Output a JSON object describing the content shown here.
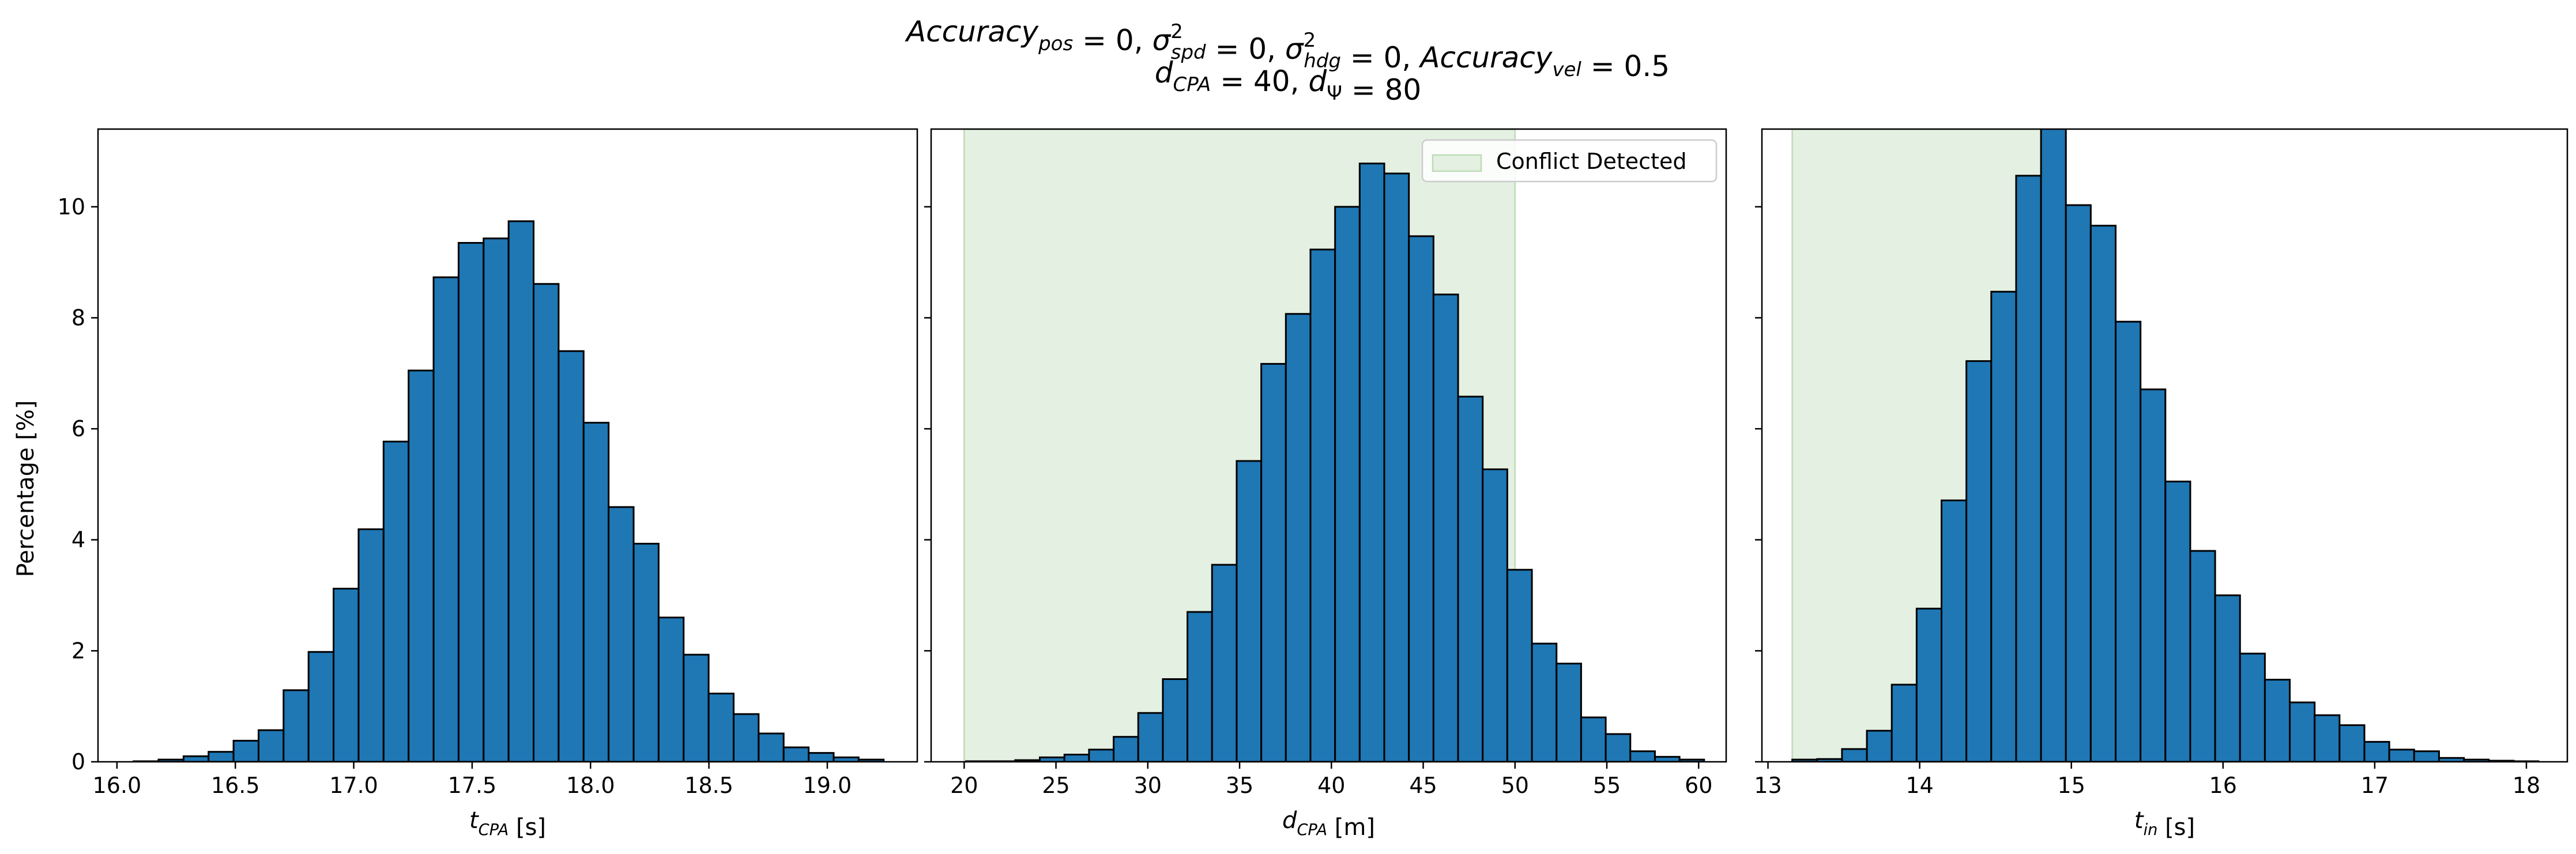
{
  "title": {
    "line1": [
      {
        "t": "Accuracy",
        "i": true
      },
      {
        "t": "pos",
        "i": true,
        "sub": true
      },
      {
        "t": " = 0, "
      },
      {
        "t": "σ",
        "i": true
      },
      {
        "t": "2",
        "sup": true,
        "stack": true
      },
      {
        "t": "spd",
        "i": true,
        "sub": true
      },
      {
        "t": " = 0, "
      },
      {
        "t": "σ",
        "i": true
      },
      {
        "t": "2",
        "sup": true,
        "stack": true
      },
      {
        "t": "hdg",
        "i": true,
        "sub": true
      },
      {
        "t": " = 0, "
      },
      {
        "t": "Accuracy",
        "i": true
      },
      {
        "t": "vel",
        "i": true,
        "sub": true
      },
      {
        "t": " = 0.5"
      }
    ],
    "line2": [
      {
        "t": "d",
        "i": true
      },
      {
        "t": "CPA",
        "i": true,
        "sub": true
      },
      {
        "t": " = 40, "
      },
      {
        "t": "d",
        "i": true
      },
      {
        "t": "Ψ",
        "sub": true
      },
      {
        "t": " = 80"
      }
    ]
  },
  "ylabel": "Percentage [%]",
  "legend": {
    "label": "Conflict Detected",
    "placement": "upper right",
    "panel": 1
  },
  "colors": {
    "bar": "#1f77b4",
    "edge": "#000000",
    "conflict": "#e4f0e2",
    "conflict_edge": "#bcdcb6"
  },
  "chart_data": [
    {
      "type": "bar",
      "subtype": "histogram",
      "xlabel": [
        {
          "t": "t",
          "i": true
        },
        {
          "t": "CPA",
          "i": true,
          "sub": true
        },
        {
          "t": " [s]"
        }
      ],
      "xlim": [
        15.92,
        19.38
      ],
      "ylim": [
        0,
        11.4
      ],
      "xticks": [
        {
          "v": 16.0,
          "label": "16.0"
        },
        {
          "v": 16.5,
          "label": "16.5"
        },
        {
          "v": 17.0,
          "label": "17.0"
        },
        {
          "v": 17.5,
          "label": "17.5"
        },
        {
          "v": 18.0,
          "label": "18.0"
        },
        {
          "v": 18.5,
          "label": "18.5"
        },
        {
          "v": 19.0,
          "label": "19.0"
        }
      ],
      "yticks": [
        {
          "v": 0,
          "label": "0"
        },
        {
          "v": 2,
          "label": "2"
        },
        {
          "v": 4,
          "label": "4"
        },
        {
          "v": 6,
          "label": "6"
        },
        {
          "v": 8,
          "label": "8"
        },
        {
          "v": 10,
          "label": "10"
        }
      ],
      "bin_start": 16.07,
      "bin_width": 0.1056,
      "values": [
        0.01,
        0.04,
        0.1,
        0.18,
        0.38,
        0.57,
        1.29,
        1.98,
        3.12,
        4.19,
        5.77,
        7.05,
        8.73,
        9.35,
        9.43,
        9.74,
        8.61,
        7.4,
        6.11,
        4.59,
        3.93,
        2.6,
        1.93,
        1.23,
        0.86,
        0.51,
        0.26,
        0.16,
        0.08,
        0.04
      ],
      "conflict_span": null
    },
    {
      "type": "bar",
      "subtype": "histogram",
      "xlabel": [
        {
          "t": "d",
          "i": true
        },
        {
          "t": "CPA",
          "i": true,
          "sub": true
        },
        {
          "t": " [m]"
        }
      ],
      "xlim": [
        18.2,
        61.5
      ],
      "ylim": [
        0,
        11.4
      ],
      "xticks": [
        {
          "v": 20,
          "label": "20"
        },
        {
          "v": 25,
          "label": "25"
        },
        {
          "v": 30,
          "label": "30"
        },
        {
          "v": 35,
          "label": "35"
        },
        {
          "v": 40,
          "label": "40"
        },
        {
          "v": 45,
          "label": "45"
        },
        {
          "v": 50,
          "label": "50"
        },
        {
          "v": 55,
          "label": "55"
        },
        {
          "v": 60,
          "label": "60"
        }
      ],
      "yticks": [
        {
          "v": 0,
          "label": ""
        },
        {
          "v": 2,
          "label": ""
        },
        {
          "v": 4,
          "label": ""
        },
        {
          "v": 6,
          "label": ""
        },
        {
          "v": 8,
          "label": ""
        },
        {
          "v": 10,
          "label": ""
        }
      ],
      "bin_start": 20.1,
      "bin_width": 1.34,
      "values": [
        0.01,
        0.01,
        0.03,
        0.08,
        0.13,
        0.22,
        0.45,
        0.88,
        1.49,
        2.7,
        3.55,
        5.42,
        7.17,
        8.07,
        9.23,
        10.0,
        10.78,
        10.6,
        9.47,
        8.42,
        6.58,
        5.27,
        3.46,
        2.13,
        1.77,
        0.8,
        0.5,
        0.19,
        0.09,
        0.04
      ],
      "conflict_span": [
        20,
        50
      ]
    },
    {
      "type": "bar",
      "subtype": "histogram",
      "xlabel": [
        {
          "t": "t",
          "i": true
        },
        {
          "t": "in",
          "i": true,
          "sub": true
        },
        {
          "t": " [s]"
        }
      ],
      "xlim": [
        12.96,
        18.27
      ],
      "ylim": [
        0,
        11.4
      ],
      "xticks": [
        {
          "v": 13,
          "label": "13"
        },
        {
          "v": 14,
          "label": "14"
        },
        {
          "v": 15,
          "label": "15"
        },
        {
          "v": 16,
          "label": "16"
        },
        {
          "v": 17,
          "label": "17"
        },
        {
          "v": 18,
          "label": "18"
        }
      ],
      "yticks": [
        {
          "v": 0,
          "label": ""
        },
        {
          "v": 2,
          "label": ""
        },
        {
          "v": 4,
          "label": ""
        },
        {
          "v": 6,
          "label": ""
        },
        {
          "v": 8,
          "label": ""
        },
        {
          "v": 10,
          "label": ""
        }
      ],
      "bin_start": 13.16,
      "bin_width": 0.164,
      "values": [
        0.04,
        0.05,
        0.23,
        0.56,
        1.39,
        2.76,
        4.71,
        7.22,
        8.47,
        10.56,
        11.45,
        10.03,
        9.66,
        7.93,
        6.71,
        5.05,
        3.8,
        3.0,
        1.95,
        1.48,
        1.07,
        0.84,
        0.66,
        0.36,
        0.22,
        0.19,
        0.07,
        0.04,
        0.02,
        0.01
      ],
      "conflict_span": [
        13.16,
        14.9
      ]
    }
  ]
}
